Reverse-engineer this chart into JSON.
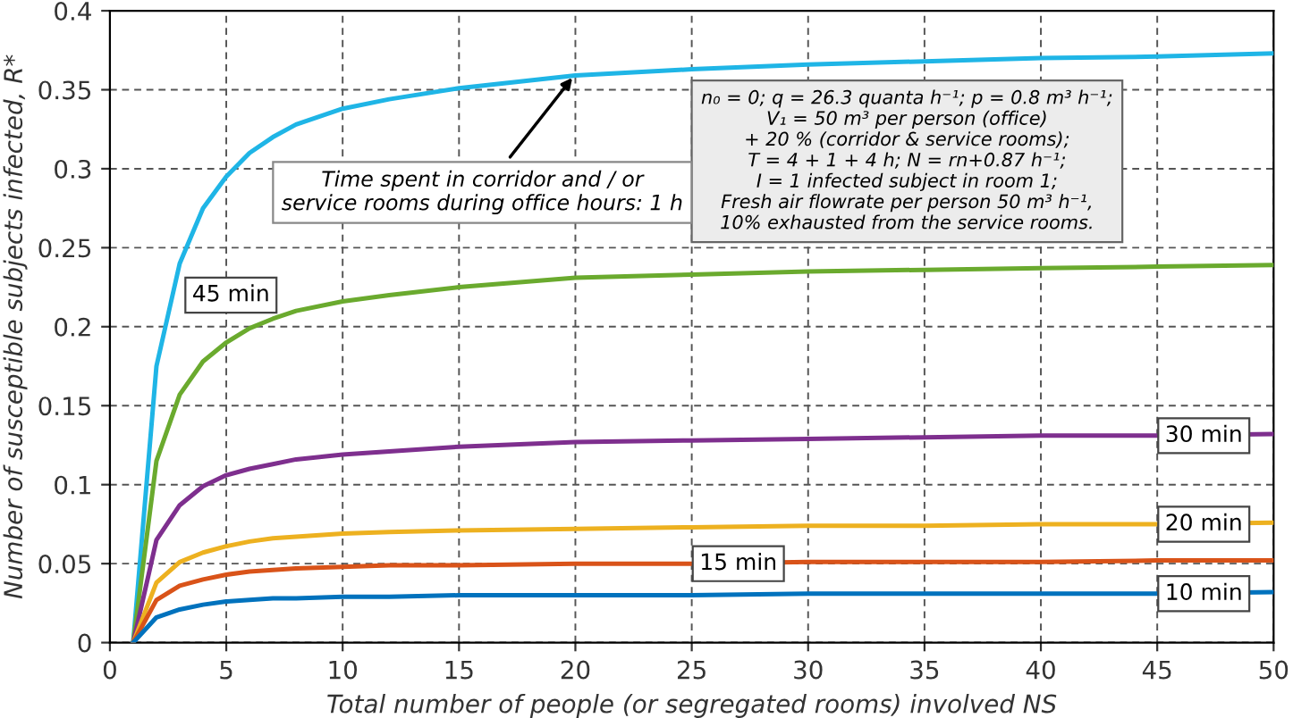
{
  "chart_data": {
    "type": "line",
    "xlabel": "Total number of people (or segregated rooms) involved NS",
    "ylabel": "Number of susceptible subjects infected, R*",
    "x": [
      1,
      2,
      3,
      4,
      5,
      6,
      7,
      8,
      10,
      12,
      15,
      20,
      25,
      30,
      35,
      40,
      45,
      50
    ],
    "series": [
      {
        "color": "#1fb5e6",
        "values": [
          0,
          0.175,
          0.24,
          0.275,
          0.295,
          0.31,
          0.32,
          0.328,
          0.338,
          0.344,
          0.351,
          0.359,
          0.363,
          0.366,
          0.368,
          0.37,
          0.371,
          0.373
        ]
      },
      {
        "name": "45 min",
        "color": "#6aaa2e",
        "values": [
          0,
          0.115,
          0.157,
          0.178,
          0.19,
          0.199,
          0.205,
          0.21,
          0.216,
          0.22,
          0.225,
          0.231,
          0.233,
          0.235,
          0.236,
          0.237,
          0.238,
          0.239
        ]
      },
      {
        "name": "30 min",
        "color": "#7e2f8e",
        "values": [
          0,
          0.065,
          0.087,
          0.099,
          0.106,
          0.11,
          0.113,
          0.116,
          0.119,
          0.121,
          0.124,
          0.127,
          0.128,
          0.129,
          0.13,
          0.131,
          0.131,
          0.132
        ]
      },
      {
        "name": "20 min",
        "color": "#edb120",
        "values": [
          0,
          0.038,
          0.051,
          0.057,
          0.061,
          0.064,
          0.066,
          0.067,
          0.069,
          0.07,
          0.071,
          0.072,
          0.073,
          0.074,
          0.074,
          0.075,
          0.075,
          0.076
        ]
      },
      {
        "name": "15 min",
        "color": "#d95319",
        "values": [
          0,
          0.027,
          0.036,
          0.04,
          0.043,
          0.045,
          0.046,
          0.047,
          0.048,
          0.049,
          0.049,
          0.05,
          0.05,
          0.051,
          0.051,
          0.051,
          0.052,
          0.052
        ]
      },
      {
        "name": "10 min",
        "color": "#0072bd",
        "values": [
          0,
          0.016,
          0.021,
          0.024,
          0.026,
          0.027,
          0.028,
          0.028,
          0.029,
          0.029,
          0.03,
          0.03,
          0.03,
          0.031,
          0.031,
          0.031,
          0.031,
          0.032
        ]
      }
    ],
    "xlim": [
      0,
      50
    ],
    "xticks": [
      0,
      5,
      10,
      15,
      20,
      25,
      30,
      35,
      40,
      45,
      50
    ],
    "ylim": [
      0,
      0.4
    ],
    "yticks": [
      0,
      0.05,
      0.1,
      0.15,
      0.2,
      0.25,
      0.3,
      0.35,
      0.4
    ],
    "grid": true,
    "line_style": "solid",
    "marker": "none",
    "legend": false,
    "annotations": [
      "n₀ = 0; q = 26.3 quanta h⁻¹; p = 0.8 m³ h⁻¹;\nV₁ = 50 m³ per person (office)\n+ 20 % (corridor & service rooms);\nT = 4 + 1 + 4 h; N = rn+0.87 h⁻¹;\nI = 1 infected subject in room 1;\nFresh air flowrate per person 50 m³ h⁻¹,\n10% exhausted from the service rooms.",
      {
        "text": "Time spent in corridor and / or\nservice rooms during office hours: 1 h",
        "x": 20,
        "y": 0.36
      }
    ]
  }
}
